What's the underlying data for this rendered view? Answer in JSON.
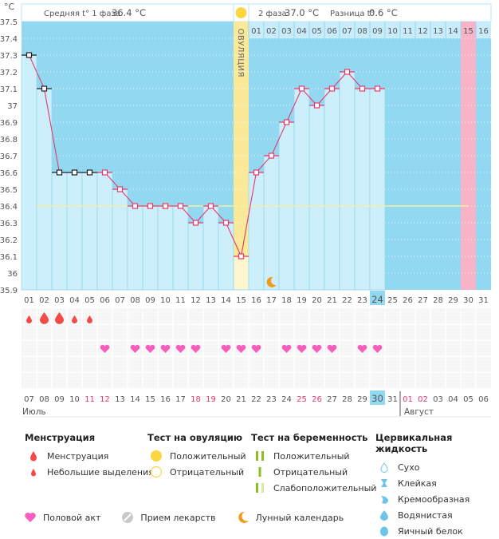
{
  "header": {
    "phase1_label": "Средняя t° 1 фаза",
    "phase1_value": "36.4 °C",
    "phase2_label": "2 фаза",
    "phase2_value": "37.0 °C",
    "diff_label": "Разница t°",
    "diff_value": "0.6 °C",
    "unit": "°C",
    "ovulation_label": "ОВУЛЯЦИЯ"
  },
  "colors": {
    "plot_bg": "#93d8f1",
    "bar_fill": "#cdeefb",
    "line": "#e8386a",
    "ovulation": "#fbe99a",
    "ovulation_light": "#fdf6cf",
    "expected_period": "#f9b3c8",
    "baseline": "#f4f0a0",
    "weekend_text": "#e8386a",
    "today_highlight": "#93d8f1",
    "drop": "#f24b48",
    "heart": "#f75dbb",
    "moon": "#f29a1b"
  },
  "chart_data": {
    "type": "line",
    "title": "",
    "ylabel": "°C",
    "ylim": [
      35.9,
      37.5
    ],
    "yticks": [
      "37.5",
      "37.4",
      "37.3",
      "37.2",
      "37.1",
      "37",
      "36.9",
      "36.8",
      "36.7",
      "36.6",
      "36.5",
      "36.4",
      "36.3",
      "36.2",
      "36.1",
      "36",
      "35.9"
    ],
    "cycle_days": [
      "01",
      "02",
      "03",
      "04",
      "05",
      "06",
      "07",
      "08",
      "09",
      "10",
      "11",
      "12",
      "13",
      "14",
      "15",
      "16",
      "17",
      "18",
      "19",
      "20",
      "21",
      "22",
      "23",
      "24",
      "25",
      "26",
      "27",
      "28",
      "29",
      "30",
      "31"
    ],
    "phase2_days": [
      "01",
      "02",
      "03",
      "04",
      "05",
      "06",
      "07",
      "08",
      "09",
      "10",
      "11",
      "12",
      "13",
      "14",
      "15",
      "16"
    ],
    "temperatures": [
      37.3,
      37.1,
      36.6,
      36.6,
      36.6,
      36.6,
      36.5,
      36.4,
      36.4,
      36.4,
      36.4,
      36.3,
      36.4,
      36.3,
      36.1,
      36.6,
      36.7,
      36.9,
      37.1,
      37.0,
      37.1,
      37.2,
      37.1,
      37.1
    ],
    "excluded_points_days": [
      1,
      2,
      3,
      4,
      5
    ],
    "baseline_temp": 36.4,
    "baseline_from_day": 2,
    "baseline_to_day": 30,
    "ovulation_day": 15,
    "today_cycle_day": 24,
    "expected_period_day": 30,
    "moon_day": 17,
    "menstruation": [
      {
        "day": 1,
        "type": "spotting"
      },
      {
        "day": 2,
        "type": "menstruation"
      },
      {
        "day": 3,
        "type": "menstruation"
      },
      {
        "day": 4,
        "type": "spotting"
      },
      {
        "day": 5,
        "type": "spotting"
      }
    ],
    "intercourse_days": [
      6,
      8,
      9,
      10,
      11,
      12,
      14,
      15,
      16,
      18,
      19,
      20,
      21,
      23,
      24
    ],
    "calendar_dates": [
      "07",
      "08",
      "09",
      "10",
      "11",
      "12",
      "13",
      "14",
      "15",
      "16",
      "17",
      "18",
      "19",
      "20",
      "21",
      "22",
      "23",
      "24",
      "25",
      "26",
      "27",
      "28",
      "29",
      "30",
      "31",
      "01",
      "02",
      "03",
      "04",
      "05",
      "06"
    ],
    "weekend_indices": [
      4,
      5,
      11,
      12,
      18,
      19,
      25,
      26
    ],
    "today_date_index": 23,
    "months": [
      {
        "label": "Июль",
        "start_index": 0
      },
      {
        "label": "Август",
        "start_index": 25
      }
    ]
  },
  "legend": {
    "menstruation": {
      "title": "Менструация",
      "items": [
        {
          "icon": "drop-large-icon",
          "label": "Менструация"
        },
        {
          "icon": "drop-small-icon",
          "label": "Небольшие выделения"
        }
      ]
    },
    "ovulation_test": {
      "title": "Тест на овуляцию",
      "items": [
        {
          "icon": "filled-circle-icon",
          "label": "Положительный"
        },
        {
          "icon": "empty-circle-icon",
          "label": "Отрицательный"
        }
      ]
    },
    "pregnancy_test": {
      "title": "Тест на беременность",
      "items": [
        {
          "icon": "two-lines-icon",
          "label": "Положительный"
        },
        {
          "icon": "one-line-icon",
          "label": "Отрицательный"
        },
        {
          "icon": "faint-line-icon",
          "label": "Слабоположительный"
        }
      ]
    },
    "cervical_fluid": {
      "title": "Цервикальная жидкость",
      "items": [
        {
          "icon": "dry-icon",
          "label": "Сухо"
        },
        {
          "icon": "sticky-icon",
          "label": "Клейкая"
        },
        {
          "icon": "creamy-icon",
          "label": "Кремообразная"
        },
        {
          "icon": "watery-icon",
          "label": "Водянистая"
        },
        {
          "icon": "eggwhite-icon",
          "label": "Яичный белок"
        }
      ]
    },
    "bottom": [
      {
        "icon": "heart-icon",
        "label": "Половой акт"
      },
      {
        "icon": "pill-icon",
        "label": "Прием лекарств"
      },
      {
        "icon": "moon-icon",
        "label": "Лунный календарь"
      }
    ]
  }
}
